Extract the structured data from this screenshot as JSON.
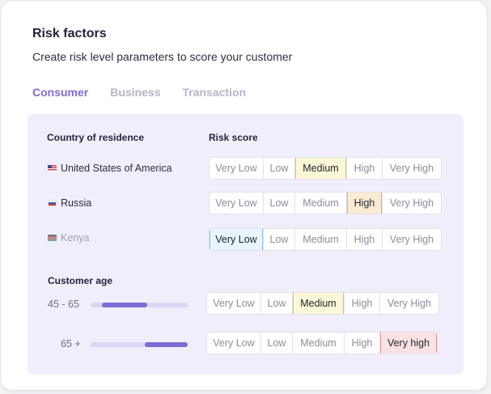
{
  "header": {
    "title": "Risk factors",
    "subtitle": "Create risk level parameters to score your customer"
  },
  "tabs": [
    {
      "label": "Consumer",
      "active": true
    },
    {
      "label": "Business",
      "active": false
    },
    {
      "label": "Transaction",
      "active": false
    }
  ],
  "residence": {
    "col_country": "Country of residence",
    "col_score": "Risk score",
    "rows": [
      {
        "country": "United States of America",
        "flag": "us-flag-icon",
        "selected": "Medium"
      },
      {
        "country": "Russia",
        "flag": "ru-flag-icon",
        "selected": "High"
      },
      {
        "country": "Kenya",
        "flag": "ke-flag-icon",
        "selected": "Very Low",
        "disabled": true
      }
    ]
  },
  "levels": {
    "very_low": "Very Low",
    "low": "Low",
    "medium": "Medium",
    "high": "High",
    "very_high": "Very High",
    "very_high_alt": "Very high"
  },
  "age": {
    "heading": "Customer age",
    "rows": [
      {
        "label": "45 - 65",
        "range_start": 0.12,
        "range_end": 0.58,
        "selected": "Medium"
      },
      {
        "label": "65 +",
        "range_start": 0.56,
        "range_end": 1.0,
        "selected": "Very high"
      }
    ]
  },
  "colors": {
    "accent": "#7e6bd3",
    "panel_bg": "#f0eefb",
    "very_low_bg": "#eaf4fd",
    "medium_bg": "#fcf7d7",
    "high_bg": "#fbebd2",
    "very_high_bg": "#fbe2e2"
  }
}
